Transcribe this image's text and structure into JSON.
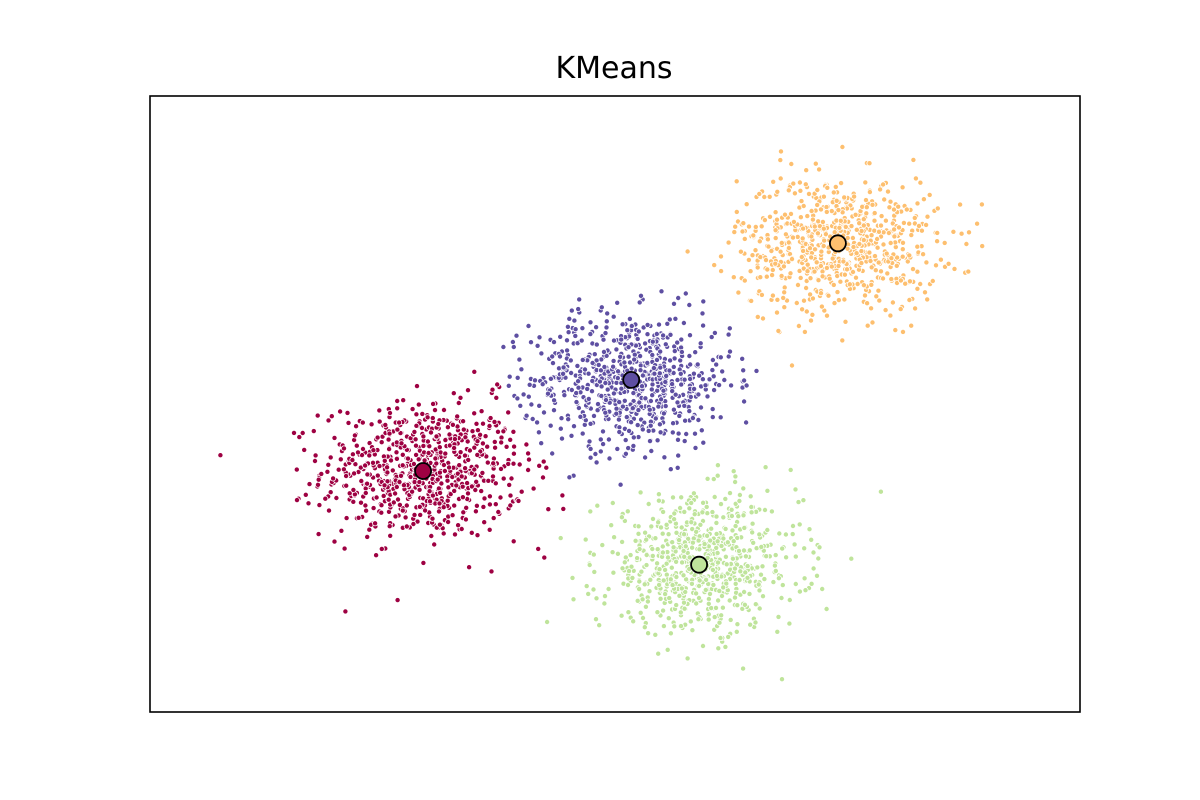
{
  "chart_data": {
    "type": "scatter",
    "title": "KMeans",
    "xlabel": "",
    "ylabel": "",
    "xlim": [
      -2.7,
      3.6
    ],
    "ylim": [
      -1.8,
      2.8
    ],
    "grid": false,
    "legend": "none",
    "show_ticks": false,
    "n_points_per_cluster": 750,
    "clusters": [
      {
        "color": "#9e0142",
        "center": [
          -0.85,
          -0.0
        ],
        "spread": [
          0.34,
          0.25
        ],
        "centroid_marker": true
      },
      {
        "color": "#5e4fa2",
        "center": [
          0.56,
          0.68
        ],
        "spread": [
          0.34,
          0.25
        ],
        "centroid_marker": true
      },
      {
        "color": "#fdbf6f",
        "center": [
          1.96,
          1.7
        ],
        "spread": [
          0.34,
          0.25
        ],
        "centroid_marker": true
      },
      {
        "color": "#bfe49b",
        "center": [
          1.02,
          -0.7
        ],
        "spread": [
          0.34,
          0.25
        ],
        "centroid_marker": true
      }
    ]
  }
}
